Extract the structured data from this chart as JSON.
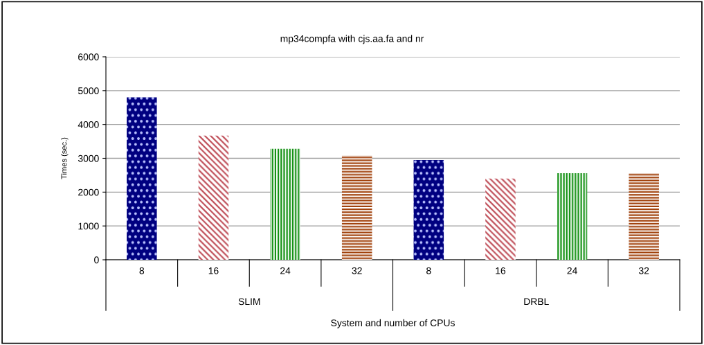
{
  "chart_data": {
    "type": "bar",
    "title": "mp34compfa with cjs.aa.fa and nr",
    "xlabel": "System and number of CPUs",
    "ylabel": "Times (sec.)",
    "categories": [
      "8",
      "16",
      "24",
      "32",
      "8",
      "16",
      "24",
      "32"
    ],
    "values": [
      4800,
      3670,
      3280,
      3080,
      2950,
      2400,
      2560,
      2560
    ],
    "colors": [
      "#000080",
      "#c0505a",
      "#109010",
      "#a0400a",
      "#000080",
      "#c0505a",
      "#109010",
      "#a0400a"
    ],
    "annotations": [
      "SLIM",
      "DRBL"
    ],
    "ylim": [
      0,
      6000
    ],
    "yticks": [
      0,
      1000,
      2000,
      3000,
      4000,
      5000,
      6000
    ],
    "grid": "y",
    "legend": false
  }
}
